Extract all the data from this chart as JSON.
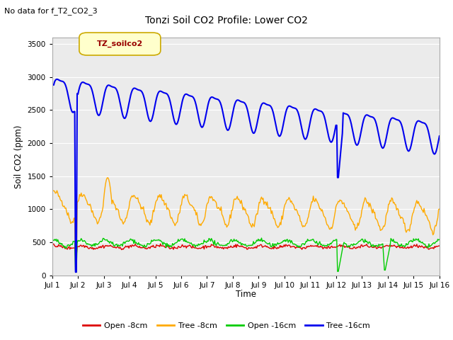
{
  "title": "Tonzi Soil CO2 Profile: Lower CO2",
  "subtitle": "No data for f_T2_CO2_3",
  "ylabel": "Soil CO2 (ppm)",
  "xlabel": "Time",
  "legend_label": "TZ_soilco2",
  "ylim": [
    0,
    3600
  ],
  "yticks": [
    0,
    500,
    1000,
    1500,
    2000,
    2500,
    3000,
    3500
  ],
  "x_labels": [
    "Jul 1",
    "Jul 2",
    "Jul 3",
    "Jul 4",
    "Jul 5",
    "Jul 6",
    "Jul 7",
    "Jul 8",
    "Jul 9",
    "Jul 10",
    "Jul 11",
    "Jul 12",
    "Jul 13",
    "Jul 14",
    "Jul 15",
    "Jul 16"
  ],
  "colors": {
    "open_8cm": "#dd0000",
    "tree_8cm": "#ffaa00",
    "open_16cm": "#00cc00",
    "tree_16cm": "#0000ee"
  },
  "plot_bg": "#ebebeb",
  "n_points": 480
}
